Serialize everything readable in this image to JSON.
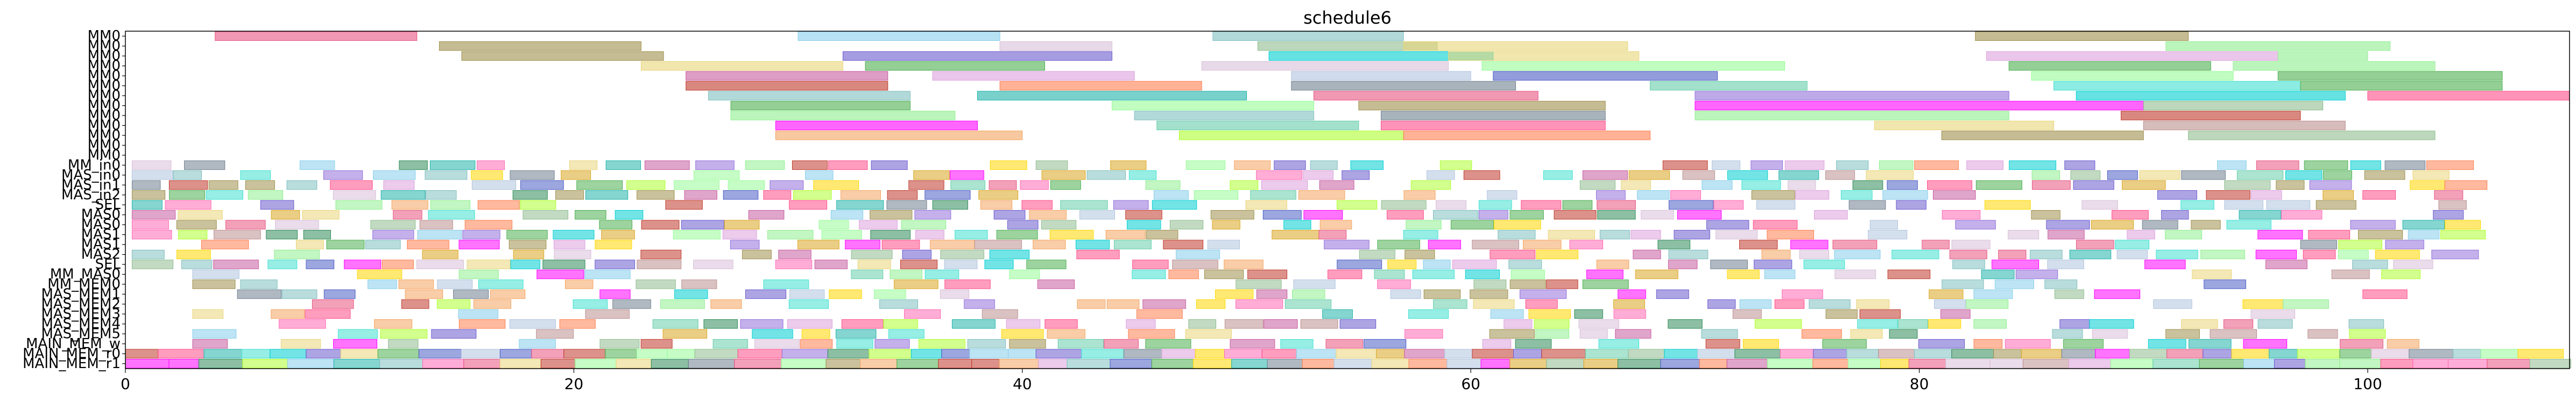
{
  "chart_data": {
    "type": "gantt",
    "title": "schedule6",
    "xlim": [
      0,
      109
    ],
    "x_ticks": [
      0,
      20,
      40,
      60,
      80,
      100
    ],
    "x_tick_labels": [
      "0",
      "20",
      "40",
      "60",
      "80",
      "100"
    ],
    "rows": [
      "MM0",
      "MM0",
      "MM0",
      "MM0",
      "MM0",
      "MM0",
      "MM0",
      "MM0",
      "MM0",
      "MM0",
      "MM0",
      "MM0",
      "MM0",
      "MM_in0",
      "MAS_in0",
      "MAS_in1",
      "MAS_in2",
      "SEL",
      "MAS0",
      "MAS0",
      "MAS1",
      "MAS1",
      "MAS2",
      "SEL",
      "MM_MAS0",
      "MM_MEM0",
      "MAS_MEM1",
      "MAS_MEM2",
      "MAS_MEM3",
      "MAS_MEM4",
      "MAS_MEM5",
      "MAIN_MEM_w",
      "MAIN_MEM_r0",
      "MAIN_MEM_r1"
    ],
    "palette": [
      "#e75480",
      "#9e8f4c",
      "#87ceeb",
      "#7fbfbf",
      "#e9d57a",
      "#4caf50",
      "#c75b9f",
      "#c0392b",
      "#ff7f50",
      "#9370db",
      "#40e0d0",
      "#4b5cc4",
      "#adff2f",
      "#ff00ff",
      "#ff4d88",
      "#2e8b57",
      "#daa520",
      "#d8bfd8",
      "#00ced1",
      "#8fbc8f",
      "#ffd700",
      "#b0c4de",
      "#90ee90",
      "#ff69b4",
      "#6a5acd",
      "#20b2aa",
      "#f4a460",
      "#708090",
      "#98fb98",
      "#dda0dd",
      "#66cdaa",
      "#bc8f8f"
    ],
    "tasks": [
      [
        0,
        4.0,
        13.0,
        0
      ],
      [
        0,
        30.0,
        39.0,
        2
      ],
      [
        0,
        48.5,
        57.0,
        3
      ],
      [
        0,
        82.5,
        92.0,
        1
      ],
      [
        1,
        14.0,
        23.0,
        1
      ],
      [
        1,
        39.0,
        44.0,
        17
      ],
      [
        1,
        50.5,
        58.5,
        19
      ],
      [
        1,
        57.0,
        67.0,
        4
      ],
      [
        1,
        91.0,
        101.0,
        22
      ],
      [
        2,
        15.0,
        24.0,
        1
      ],
      [
        2,
        32.0,
        44.0,
        24
      ],
      [
        2,
        51.0,
        61.0,
        18
      ],
      [
        2,
        59.0,
        67.5,
        4
      ],
      [
        2,
        83.0,
        96.0,
        29
      ],
      [
        2,
        96.0,
        100.0,
        22
      ],
      [
        3,
        23.0,
        32.0,
        4
      ],
      [
        3,
        33.0,
        41.0,
        5
      ],
      [
        3,
        48.0,
        59.0,
        17
      ],
      [
        3,
        60.5,
        74.0,
        28
      ],
      [
        3,
        84.0,
        93.0,
        5
      ],
      [
        3,
        94.0,
        103.0,
        22
      ],
      [
        4,
        25.0,
        34.0,
        6
      ],
      [
        4,
        36.0,
        45.0,
        29
      ],
      [
        4,
        52.0,
        60.0,
        21
      ],
      [
        4,
        61.0,
        71.0,
        11
      ],
      [
        4,
        85.0,
        94.0,
        28
      ],
      [
        4,
        96.0,
        106.0,
        5
      ],
      [
        5,
        25.0,
        34.0,
        7
      ],
      [
        5,
        39.0,
        48.0,
        8
      ],
      [
        5,
        52.0,
        62.0,
        27
      ],
      [
        5,
        68.0,
        75.0,
        30
      ],
      [
        5,
        86.0,
        97.0,
        10
      ],
      [
        5,
        97.0,
        106.0,
        5
      ],
      [
        6,
        26.0,
        35.0,
        3
      ],
      [
        6,
        38.0,
        50.0,
        25
      ],
      [
        6,
        53.0,
        63.0,
        0
      ],
      [
        6,
        70.0,
        84.0,
        9
      ],
      [
        6,
        87.0,
        99.0,
        18
      ],
      [
        6,
        100.0,
        109.0,
        14
      ],
      [
        7,
        27.0,
        35.0,
        5
      ],
      [
        7,
        44.0,
        53.0,
        28
      ],
      [
        7,
        55.0,
        66.0,
        1
      ],
      [
        7,
        70.0,
        90.0,
        13
      ],
      [
        7,
        90.0,
        98.0,
        19
      ],
      [
        8,
        27.0,
        37.0,
        22
      ],
      [
        8,
        45.0,
        53.0,
        3
      ],
      [
        8,
        56.0,
        66.0,
        27
      ],
      [
        8,
        70.0,
        84.0,
        22
      ],
      [
        8,
        89.0,
        97.0,
        7
      ],
      [
        9,
        29.0,
        38.0,
        13
      ],
      [
        9,
        46.0,
        55.0,
        30
      ],
      [
        9,
        56.0,
        66.0,
        14
      ],
      [
        9,
        78.0,
        86.0,
        4
      ],
      [
        9,
        90.0,
        99.0,
        31
      ],
      [
        10,
        29.0,
        40.0,
        26
      ],
      [
        10,
        47.0,
        57.0,
        12
      ],
      [
        10,
        57.0,
        68.0,
        8
      ],
      [
        10,
        81.0,
        90.0,
        1
      ],
      [
        10,
        92.0,
        103.0,
        19
      ]
    ]
  }
}
